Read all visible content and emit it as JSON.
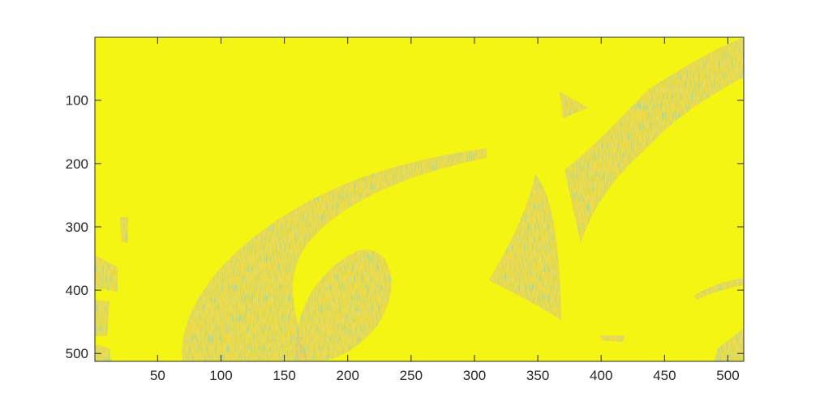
{
  "chart_data": {
    "type": "heatmap",
    "title": "",
    "xlabel": "",
    "ylabel": "",
    "xlim": [
      0.5,
      512.5
    ],
    "ylim": [
      512.5,
      0.5
    ],
    "y_direction": "reversed",
    "x_ticks": [
      50,
      100,
      150,
      200,
      250,
      300,
      350,
      400,
      450,
      500
    ],
    "x_tick_labels": [
      "50",
      "100",
      "150",
      "200",
      "250",
      "300",
      "350",
      "400",
      "450",
      "500"
    ],
    "y_ticks": [
      100,
      200,
      300,
      400,
      500
    ],
    "y_tick_labels": [
      "100",
      "200",
      "300",
      "400",
      "500"
    ],
    "grid": false,
    "legend": "none",
    "colormap": "parula",
    "colors": {
      "background_high": "#f5f514",
      "mid": "#e0b846",
      "low": "#29b6c4",
      "axis": "#262626"
    }
  }
}
